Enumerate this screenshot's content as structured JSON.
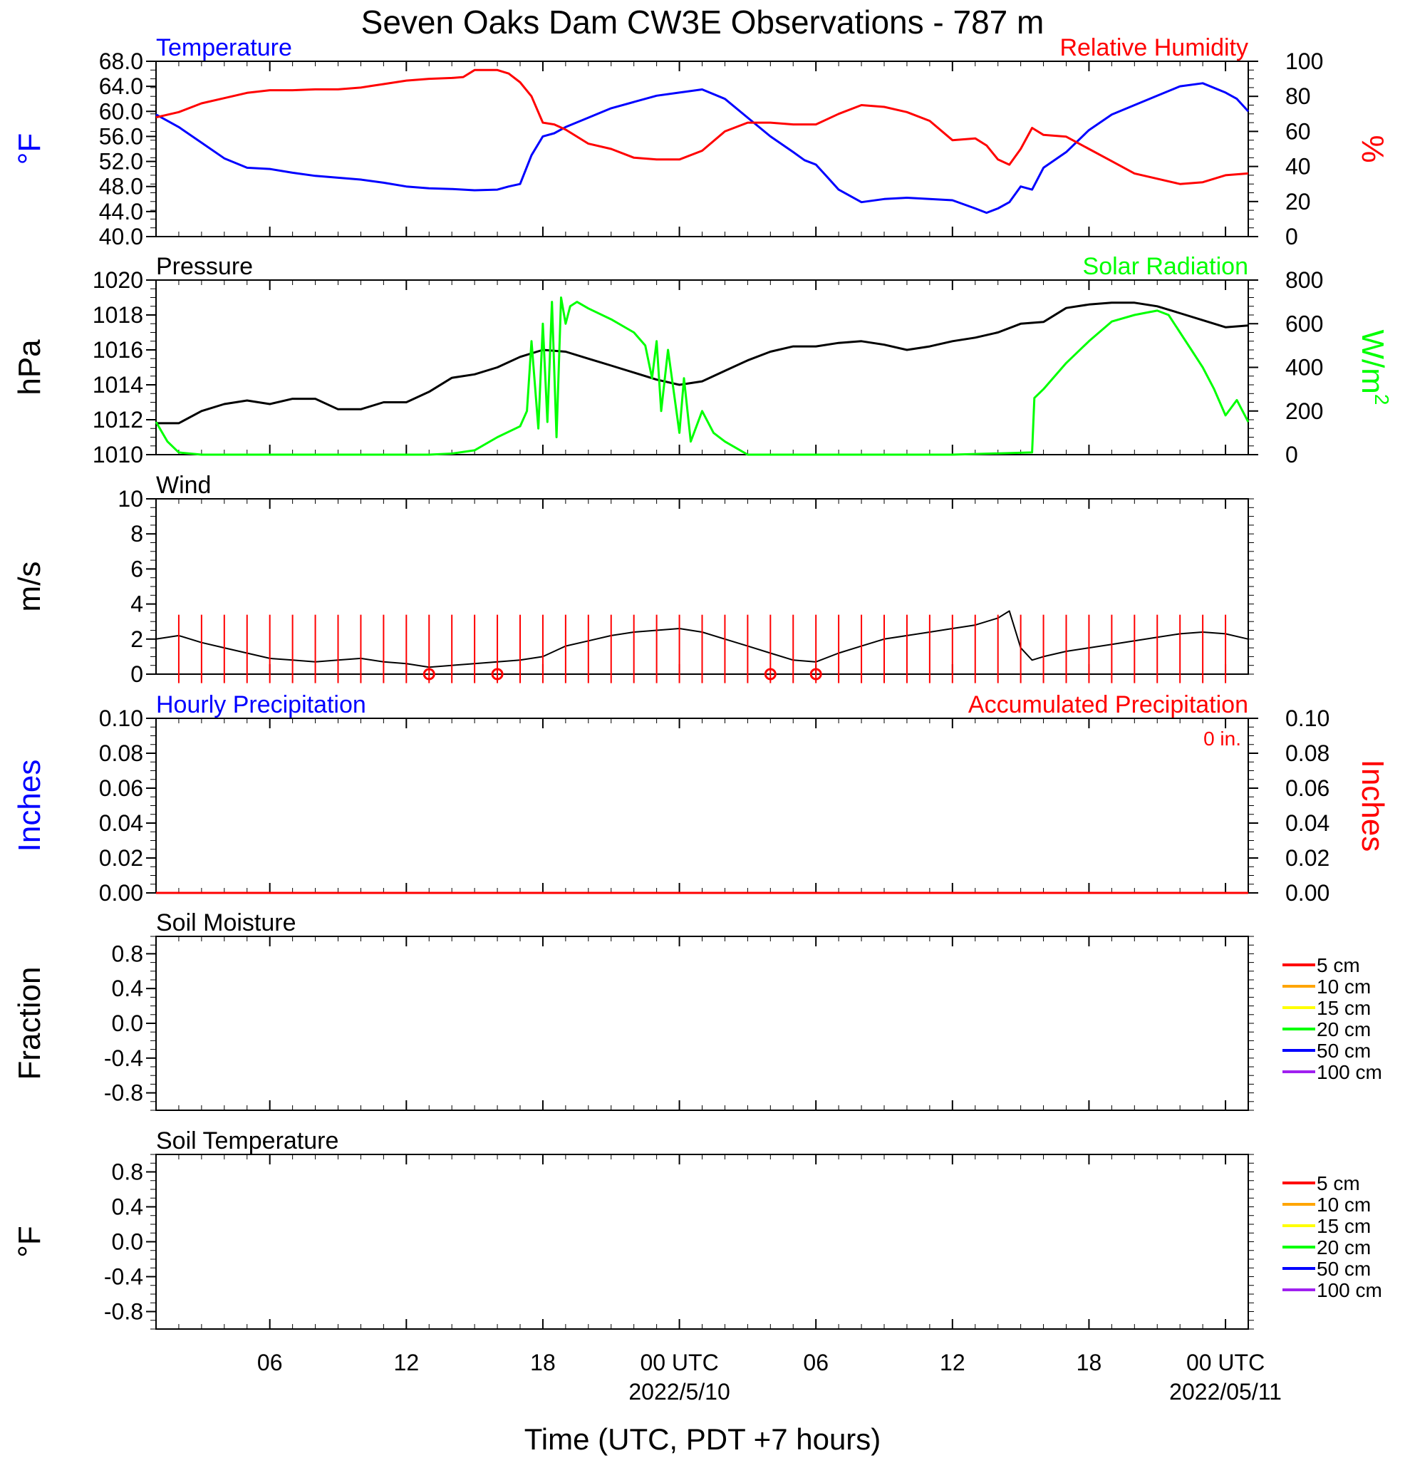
{
  "page": {
    "title": "Seven Oaks Dam CW3E Observations - 787 m",
    "xlabel": "Time (UTC, PDT +7 hours)"
  },
  "chart_data": [
    {
      "id": "temp_rh",
      "type": "line",
      "title_left": "Temperature",
      "title_left_color": "#0000ff",
      "title_right": "Relative Humidity",
      "title_right_color": "#ff0000",
      "ylabel_left": "°F",
      "ylabel_left_color": "#0000ff",
      "ylabel_right": "%",
      "ylabel_right_color": "#ff0000",
      "ylim_left": [
        40,
        68
      ],
      "ylim_right": [
        0,
        100
      ],
      "yticks_left": [
        "40.0",
        "44.0",
        "48.0",
        "52.0",
        "56.0",
        "60.0",
        "64.0",
        "68.0"
      ],
      "yticks_right": [
        "0",
        "20",
        "40",
        "60",
        "80",
        "100"
      ],
      "series": [
        {
          "axis": "left",
          "color": "#0000ff",
          "x": [
            0,
            1,
            2,
            3,
            4,
            5,
            6,
            7,
            8,
            9,
            10,
            11,
            12,
            13,
            14,
            15,
            15.5,
            16,
            16.5,
            17,
            17.5,
            18,
            19,
            20,
            21,
            22,
            23,
            24,
            25,
            26,
            27,
            28,
            28.5,
            29,
            29.5,
            30,
            31,
            32,
            33,
            34,
            35,
            36,
            36.5,
            37,
            37.5,
            38,
            38.5,
            39,
            40,
            41,
            42,
            43,
            44,
            45,
            46,
            47,
            47.5,
            48
          ],
          "y": [
            59.5,
            57.5,
            55,
            52.5,
            51,
            50.8,
            50.2,
            49.7,
            49.4,
            49.1,
            48.6,
            48,
            47.7,
            47.6,
            47.4,
            47.5,
            48,
            48.4,
            53,
            56,
            56.5,
            57.5,
            59,
            60.5,
            61.5,
            62.5,
            63,
            63.5,
            62,
            59,
            56,
            53.5,
            52.2,
            51.5,
            49.5,
            47.5,
            45.5,
            46,
            46.2,
            46,
            45.8,
            44.5,
            43.8,
            44.5,
            45.5,
            48,
            47.5,
            51,
            53.5,
            57,
            59.5,
            61,
            62.5,
            64,
            64.5,
            63,
            62,
            60
          ]
        },
        {
          "axis": "right",
          "color": "#ff0000",
          "x": [
            0,
            1,
            2,
            3,
            4,
            5,
            6,
            7,
            8,
            9,
            9.5,
            10,
            11,
            12,
            13,
            13.5,
            14,
            15,
            15.5,
            16,
            16.5,
            17,
            17.5,
            18,
            19,
            20,
            21,
            22,
            23,
            24,
            25,
            26,
            27,
            28,
            29,
            30,
            31,
            32,
            33,
            34,
            35,
            36,
            36.5,
            37,
            37.5,
            38,
            38.5,
            39,
            40,
            41,
            42,
            43,
            44,
            45,
            46,
            47,
            48
          ],
          "y": [
            68,
            71,
            76,
            79,
            82,
            83.5,
            83.5,
            84,
            84,
            85,
            86,
            87,
            89,
            90,
            90.5,
            91,
            95,
            95,
            93,
            88,
            80,
            65,
            64,
            61,
            53,
            50,
            45,
            44,
            44,
            49,
            60,
            65,
            65,
            64,
            64,
            70,
            75,
            74,
            71,
            66,
            55,
            56,
            52,
            44,
            41,
            50,
            62,
            58,
            57,
            50,
            43,
            36,
            33,
            30,
            31,
            35,
            36
          ]
        }
      ]
    },
    {
      "id": "press_solar",
      "type": "line",
      "title_left": "Pressure",
      "title_left_color": "#000000",
      "title_right": "Solar Radiation",
      "title_right_color": "#00ff00",
      "ylabel_left": "hPa",
      "ylabel_left_color": "#000000",
      "ylabel_right": "W/m",
      "ylabel_right_sup": "2",
      "ylabel_right_color": "#00ff00",
      "ylim_left": [
        1010,
        1020
      ],
      "ylim_right": [
        0,
        800
      ],
      "yticks_left": [
        "1010",
        "1012",
        "1014",
        "1016",
        "1018",
        "1020"
      ],
      "yticks_right": [
        "0",
        "200",
        "400",
        "600",
        "800"
      ],
      "series": [
        {
          "axis": "left",
          "color": "#000000",
          "x": [
            0,
            1,
            2,
            3,
            4,
            5,
            6,
            7,
            8,
            9,
            10,
            11,
            12,
            13,
            14,
            15,
            16,
            17,
            18,
            19,
            20,
            21,
            22,
            23,
            24,
            25,
            26,
            27,
            28,
            29,
            30,
            31,
            32,
            33,
            34,
            35,
            36,
            37,
            38,
            39,
            40,
            41,
            42,
            43,
            44,
            45,
            46,
            47,
            48
          ],
          "y": [
            1011.8,
            1011.8,
            1012.5,
            1012.9,
            1013.1,
            1012.9,
            1013.2,
            1013.2,
            1012.6,
            1012.6,
            1013,
            1013,
            1013.6,
            1014.4,
            1014.6,
            1015,
            1015.6,
            1016,
            1015.9,
            1015.5,
            1015.1,
            1014.7,
            1014.3,
            1014.0,
            1014.2,
            1014.8,
            1015.4,
            1015.9,
            1016.2,
            1016.2,
            1016.4,
            1016.5,
            1016.3,
            1016.0,
            1016.2,
            1016.5,
            1016.7,
            1017.0,
            1017.5,
            1017.6,
            1018.4,
            1018.6,
            1018.7,
            1018.7,
            1018.5,
            1018.1,
            1017.7,
            1017.3,
            1017.4
          ]
        },
        {
          "axis": "right",
          "color": "#00ff00",
          "x": [
            0,
            0.5,
            1,
            2,
            12,
            13,
            14,
            15,
            16,
            16.3,
            16.5,
            16.8,
            17,
            17.2,
            17.4,
            17.6,
            17.8,
            18,
            18.2,
            18.5,
            19,
            20,
            21,
            21.5,
            21.8,
            22,
            22.2,
            22.5,
            23,
            23.2,
            23.5,
            24,
            24.5,
            25,
            26,
            35,
            38.5,
            38.6,
            39,
            40,
            41,
            42,
            43,
            43.5,
            44,
            44.5,
            45,
            45.5,
            46,
            46.5,
            47,
            47.5,
            48
          ],
          "y": [
            150,
            60,
            10,
            0,
            0,
            5,
            20,
            80,
            130,
            200,
            520,
            120,
            600,
            150,
            700,
            80,
            720,
            600,
            680,
            700,
            670,
            620,
            560,
            500,
            350,
            520,
            200,
            480,
            100,
            350,
            60,
            200,
            100,
            60,
            0,
            0,
            10,
            260,
            300,
            420,
            520,
            610,
            640,
            650,
            660,
            640,
            560,
            480,
            400,
            300,
            180,
            250,
            150
          ]
        }
      ]
    },
    {
      "id": "wind",
      "type": "line",
      "title_left": "Wind",
      "title_left_color": "#000000",
      "ylabel_left": "m/s",
      "ylabel_left_color": "#000000",
      "ylim_left": [
        0,
        10
      ],
      "yticks_left": [
        "0",
        "2",
        "4",
        "6",
        "8",
        "10"
      ],
      "series": [
        {
          "axis": "left",
          "color": "#000000",
          "x": [
            0,
            1,
            2,
            3,
            4,
            5,
            6,
            7,
            8,
            9,
            10,
            11,
            12,
            13,
            14,
            15,
            16,
            17,
            18,
            19,
            20,
            21,
            22,
            23,
            24,
            25,
            26,
            27,
            28,
            29,
            30,
            31,
            32,
            33,
            34,
            35,
            36,
            37,
            37.5,
            38,
            38.5,
            39,
            40,
            41,
            42,
            43,
            44,
            45,
            46,
            47,
            48
          ],
          "y": [
            2.0,
            2.2,
            1.8,
            1.5,
            1.2,
            0.9,
            0.8,
            0.7,
            0.8,
            0.9,
            0.7,
            0.6,
            0.4,
            0.5,
            0.6,
            0.7,
            0.8,
            1.0,
            1.6,
            1.9,
            2.2,
            2.4,
            2.5,
            2.6,
            2.4,
            2.0,
            1.6,
            1.2,
            0.8,
            0.7,
            1.2,
            1.6,
            2.0,
            2.2,
            2.4,
            2.6,
            2.8,
            3.2,
            3.6,
            1.5,
            0.8,
            1.0,
            1.3,
            1.5,
            1.7,
            1.9,
            2.1,
            2.3,
            2.4,
            2.3,
            2.0
          ]
        }
      ],
      "barbs": {
        "color": "#ff0000",
        "x": [
          1,
          2,
          3,
          4,
          5,
          6,
          7,
          8,
          9,
          10,
          11,
          12,
          13,
          14,
          15,
          16,
          17,
          18,
          19,
          20,
          21,
          22,
          23,
          24,
          25,
          26,
          27,
          28,
          29,
          30,
          31,
          32,
          33,
          34,
          35,
          36,
          37,
          38,
          39,
          40,
          41,
          42,
          43,
          44,
          45,
          46,
          47
        ],
        "calm_x": [
          12,
          15,
          27,
          29
        ]
      }
    },
    {
      "id": "precip",
      "type": "line",
      "title_left": "Hourly Precipitation",
      "title_left_color": "#0000ff",
      "title_right": "Accumulated Precipitation",
      "title_right_color": "#ff0000",
      "annotation": "0 in.",
      "ylabel_left": "Inches",
      "ylabel_left_color": "#0000ff",
      "ylabel_right": "Inches",
      "ylabel_right_color": "#ff0000",
      "ylim_left": [
        0,
        0.1
      ],
      "ylim_right": [
        0,
        0.1
      ],
      "yticks_left": [
        "0.00",
        "0.02",
        "0.04",
        "0.06",
        "0.08",
        "0.10"
      ],
      "yticks_right": [
        "0.00",
        "0.02",
        "0.04",
        "0.06",
        "0.08",
        "0.10"
      ],
      "series": [
        {
          "axis": "left",
          "color": "#0000ff",
          "x": [
            0,
            48
          ],
          "y": [
            0,
            0
          ]
        },
        {
          "axis": "right",
          "color": "#ff0000",
          "x": [
            0,
            48
          ],
          "y": [
            0,
            0
          ]
        }
      ]
    },
    {
      "id": "soil_moist",
      "type": "line",
      "title_left": "Soil Moisture",
      "title_left_color": "#000000",
      "ylabel_left": "Fraction",
      "ylabel_left_color": "#000000",
      "ylim_left": [
        -1,
        1
      ],
      "yticks_left": [
        "-0.8",
        "-0.4",
        "0.0",
        "0.4",
        "0.8"
      ],
      "legend": [
        {
          "label": "5 cm",
          "color": "#ff0000"
        },
        {
          "label": "10 cm",
          "color": "#ffa500"
        },
        {
          "label": "15 cm",
          "color": "#ffff00"
        },
        {
          "label": "20 cm",
          "color": "#00ff00"
        },
        {
          "label": "50 cm",
          "color": "#0000ff"
        },
        {
          "label": "100 cm",
          "color": "#a020f0"
        }
      ],
      "series": []
    },
    {
      "id": "soil_temp",
      "type": "line",
      "title_left": "Soil Temperature",
      "title_left_color": "#000000",
      "ylabel_left": "°F",
      "ylabel_left_color": "#000000",
      "ylim_left": [
        -1,
        1
      ],
      "yticks_left": [
        "-0.8",
        "-0.4",
        "0.0",
        "0.4",
        "0.8"
      ],
      "legend": [
        {
          "label": "5 cm",
          "color": "#ff0000"
        },
        {
          "label": "10 cm",
          "color": "#ffa500"
        },
        {
          "label": "15 cm",
          "color": "#ffff00"
        },
        {
          "label": "20 cm",
          "color": "#00ff00"
        },
        {
          "label": "50 cm",
          "color": "#0000ff"
        },
        {
          "label": "100 cm",
          "color": "#a020f0"
        }
      ],
      "series": []
    }
  ],
  "x_axis": {
    "range_hours": [
      0,
      48
    ],
    "ticks": [
      {
        "hour": 5,
        "label": "06",
        "date": ""
      },
      {
        "hour": 11,
        "label": "12",
        "date": ""
      },
      {
        "hour": 17,
        "label": "18",
        "date": ""
      },
      {
        "hour": 23,
        "label": "00 UTC",
        "date": "2022/5/10"
      },
      {
        "hour": 29,
        "label": "06",
        "date": ""
      },
      {
        "hour": 35,
        "label": "12",
        "date": ""
      },
      {
        "hour": 41,
        "label": "18",
        "date": ""
      },
      {
        "hour": 47,
        "label": "00 UTC",
        "date": "2022/05/11"
      }
    ]
  }
}
